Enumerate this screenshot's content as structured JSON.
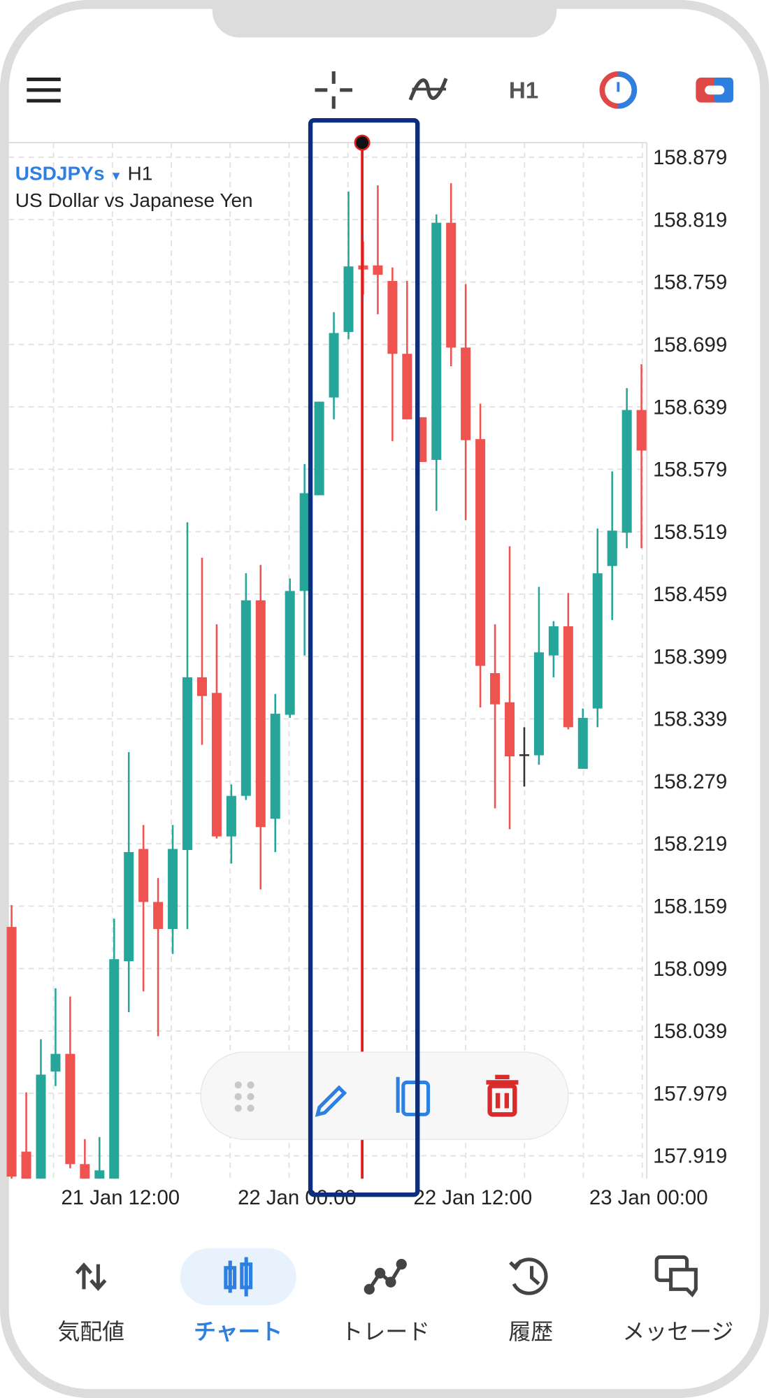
{
  "toolbar": {
    "timeframe": "H1"
  },
  "chart_data": {
    "type": "candlestick",
    "symbol": "USDJPYs",
    "timeframe": "H1",
    "description": "US Dollar vs Japanese Yen",
    "open": [
      158.139,
      157.923,
      157.897,
      158.0,
      158.017,
      157.911,
      157.897,
      157.897,
      158.106,
      158.214,
      158.163,
      158.137,
      158.213,
      158.379,
      158.364,
      158.226,
      158.265,
      158.453,
      158.243,
      158.343,
      158.462,
      158.554,
      158.648,
      158.711,
      158.775,
      158.775,
      158.76,
      158.69,
      158.629,
      158.588,
      158.816,
      158.696,
      158.608,
      158.383,
      158.355,
      158.305,
      158.304,
      158.4,
      158.428,
      158.291,
      158.349,
      158.486,
      158.518,
      158.636
    ],
    "high": [
      158.16,
      157.98,
      158.031,
      158.08,
      158.072,
      157.935,
      157.937,
      158.147,
      158.307,
      158.237,
      158.186,
      158.237,
      158.528,
      158.494,
      158.43,
      158.276,
      158.479,
      158.487,
      158.363,
      158.474,
      158.584,
      158.644,
      158.73,
      158.846,
      158.798,
      158.852,
      158.773,
      158.76,
      158.629,
      158.824,
      158.854,
      158.757,
      158.642,
      158.43,
      158.505,
      158.331,
      158.466,
      158.433,
      158.46,
      158.349,
      158.522,
      158.577,
      158.657,
      158.68
    ],
    "low": [
      157.897,
      157.897,
      157.897,
      157.986,
      157.907,
      157.897,
      157.897,
      157.897,
      158.057,
      158.077,
      158.034,
      158.113,
      158.137,
      158.314,
      158.224,
      158.2,
      158.261,
      158.175,
      158.211,
      158.34,
      158.4,
      158.554,
      158.627,
      158.704,
      158.747,
      158.728,
      158.606,
      158.627,
      158.586,
      158.539,
      158.678,
      158.53,
      158.35,
      158.253,
      158.233,
      158.274,
      158.295,
      158.379,
      158.329,
      158.291,
      158.331,
      158.434,
      158.503,
      158.503
    ],
    "close": [
      157.899,
      157.897,
      157.997,
      158.017,
      157.911,
      157.897,
      157.905,
      158.108,
      158.211,
      158.163,
      158.137,
      158.214,
      158.379,
      158.361,
      158.226,
      158.265,
      158.453,
      158.235,
      158.344,
      158.462,
      158.556,
      158.644,
      158.71,
      158.774,
      158.771,
      158.766,
      158.69,
      158.627,
      158.586,
      158.816,
      158.696,
      158.607,
      158.39,
      158.353,
      158.303,
      158.305,
      158.403,
      158.428,
      158.331,
      158.34,
      158.479,
      158.52,
      158.636,
      158.597
    ],
    "up_color": "#26a69a",
    "down_color": "#ef5350",
    "doji_color": "#333333",
    "ylim": [
      157.897,
      158.893
    ],
    "yticks": [
      158.879,
      158.819,
      158.759,
      158.699,
      158.639,
      158.579,
      158.519,
      158.459,
      158.399,
      158.339,
      158.279,
      158.219,
      158.159,
      158.099,
      158.039,
      157.979,
      157.919
    ],
    "xticks": [
      "21 Jan 12:00",
      "22 Jan 00:00",
      "22 Jan 12:00",
      "23 Jan 00:00"
    ],
    "grid": true
  },
  "nav": [
    {
      "label": "気配値"
    },
    {
      "label": "チャート"
    },
    {
      "label": "トレード"
    },
    {
      "label": "履歴"
    },
    {
      "label": "メッセージ"
    }
  ]
}
